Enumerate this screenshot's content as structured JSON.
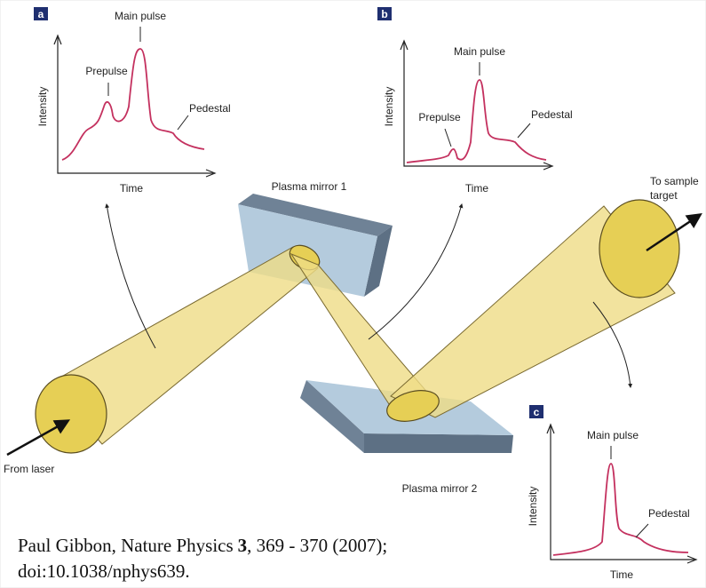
{
  "panels": [
    {
      "label": "a",
      "main": "Main pulse",
      "prepulse": "Prepulse",
      "pedestal": "Pedestal",
      "y_label": "Intensity",
      "x_label": "Time"
    },
    {
      "label": "b",
      "main": "Main pulse",
      "prepulse": "Prepulse",
      "pedestal": "Pedestal",
      "y_label": "Intensity",
      "x_label": "Time"
    },
    {
      "label": "c",
      "main": "Main pulse",
      "pedestal": "Pedestal",
      "y_label": "Intensity",
      "x_label": "Time"
    }
  ],
  "mirrors": [
    "Plasma mirror 1",
    "Plasma mirror 2"
  ],
  "beam_labels": {
    "input": "From laser",
    "output": [
      "To sample",
      "target"
    ]
  },
  "citation": {
    "author": "Paul Gibbon, Nature Physics",
    "volume": "3",
    "pages": ", 369 - 370 (2007);",
    "doi": "doi:10.1038/nphys639."
  }
}
